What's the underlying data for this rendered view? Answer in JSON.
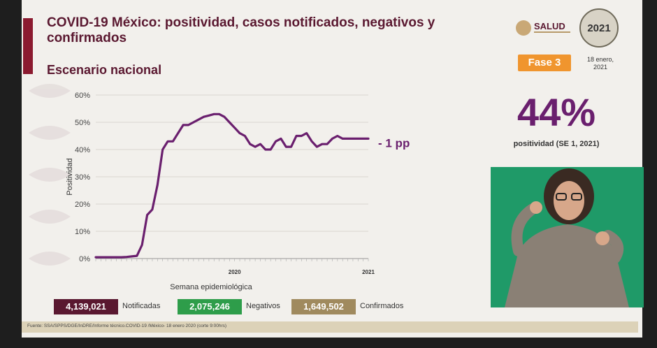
{
  "header": {
    "title": "COVID-19 México: positividad, casos notificados, negativos y confirmados",
    "subtitle": "Escenario nacional",
    "logo_text": "SALUD",
    "badge_year": "2021",
    "phase": "Fase 3",
    "date_line1": "18 enero,",
    "date_line2": "2021"
  },
  "highlight": {
    "value": "44%",
    "label": "positividad (SE 1, 2021)",
    "change": "- 1 pp"
  },
  "legend": {
    "notificadas_value": "4,139,021",
    "notificadas_label": "Notificadas",
    "negativos_value": "2,075,246",
    "negativos_label": "Negativos",
    "confirmados_value": "1,649,502",
    "confirmados_label": "Confirmados"
  },
  "colors": {
    "title": "#5a1830",
    "line": "#6a1f6e",
    "notificadas": "#5a1830",
    "negativos": "#2e9d4a",
    "confirmados": "#a08a5e",
    "phase": "#f0952e"
  },
  "footer": {
    "source": "Fuente: SSA/SPPS/DGE/InDRE/Informe técnico.COVID-19 /México- 18 enero 2020 (corte 9:00hrs)"
  },
  "chart_data": {
    "type": "line",
    "xlabel": "Semana epidemiológica",
    "ylabel": "Positividad",
    "ylim": [
      0,
      60
    ],
    "yticks": [
      "0%",
      "10%",
      "20%",
      "30%",
      "40%",
      "50%",
      "60%"
    ],
    "year_labels": [
      {
        "label": "2020",
        "week": 28
      },
      {
        "label": "2021",
        "week": 54
      }
    ],
    "grid": true,
    "x": [
      1,
      2,
      3,
      4,
      5,
      6,
      7,
      8,
      9,
      10,
      11,
      12,
      13,
      14,
      15,
      16,
      17,
      18,
      19,
      20,
      21,
      22,
      23,
      24,
      25,
      26,
      27,
      28,
      29,
      30,
      31,
      32,
      33,
      34,
      35,
      36,
      37,
      38,
      39,
      40,
      41,
      42,
      43,
      44,
      45,
      46,
      47,
      48,
      49,
      50,
      51,
      52,
      53,
      54
    ],
    "values": [
      0.5,
      0.5,
      0.5,
      0.5,
      0.5,
      0.5,
      0.6,
      0.8,
      1,
      5,
      16,
      18,
      27,
      40,
      43,
      43,
      46,
      49,
      49,
      50,
      51,
      52,
      52.5,
      53,
      53,
      52,
      50,
      48,
      46,
      45,
      42,
      41,
      42,
      40,
      40,
      43,
      44,
      41,
      41,
      45,
      45,
      46,
      43,
      41,
      42,
      42,
      44,
      45,
      44,
      44,
      44,
      44,
      44,
      44
    ]
  }
}
